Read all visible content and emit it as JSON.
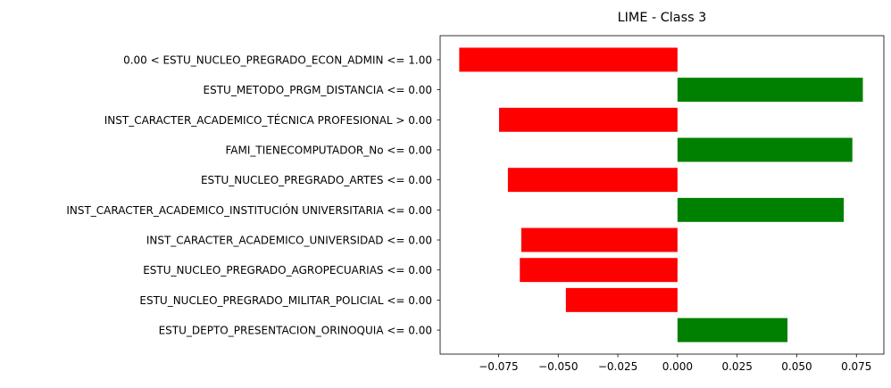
{
  "chart_data": {
    "type": "bar",
    "orientation": "horizontal",
    "title": "LIME - Class 3",
    "xlabel": "",
    "ylabel": "",
    "xlim": [
      -0.0995,
      0.0865
    ],
    "grid": false,
    "legend": "none",
    "categories": [
      "0.00 < ESTU_NUCLEO_PREGRADO_ECON_ADMIN <= 1.00",
      "ESTU_METODO_PRGM_DISTANCIA <= 0.00",
      "INST_CARACTER_ACADEMICO_TÉCNICA PROFESIONAL > 0.00",
      "FAMI_TIENECOMPUTADOR_No <= 0.00",
      "ESTU_NUCLEO_PREGRADO_ARTES <= 0.00",
      "INST_CARACTER_ACADEMICO_INSTITUCIÓN UNIVERSITARIA <= 0.00",
      "INST_CARACTER_ACADEMICO_UNIVERSIDAD <= 0.00",
      "ESTU_NUCLEO_PREGRADO_AGROPECUARIAS <= 0.00",
      "ESTU_NUCLEO_PREGRADO_MILITAR_POLICIAL <= 0.00",
      "ESTU_DEPTO_PRESENTACION_ORINOQUIA <= 0.00"
    ],
    "values": [
      -0.0915,
      0.0777,
      -0.0748,
      0.0733,
      -0.0711,
      0.0697,
      -0.0655,
      -0.0661,
      -0.0468,
      0.0461
    ],
    "xticks": [
      -0.075,
      -0.05,
      -0.025,
      0.0,
      0.025,
      0.05,
      0.075
    ],
    "xtick_labels": [
      "−0.075",
      "−0.050",
      "−0.025",
      "0.000",
      "0.025",
      "0.050",
      "0.075"
    ],
    "colors": {
      "positive": "#008000",
      "negative": "#ff0000"
    }
  }
}
